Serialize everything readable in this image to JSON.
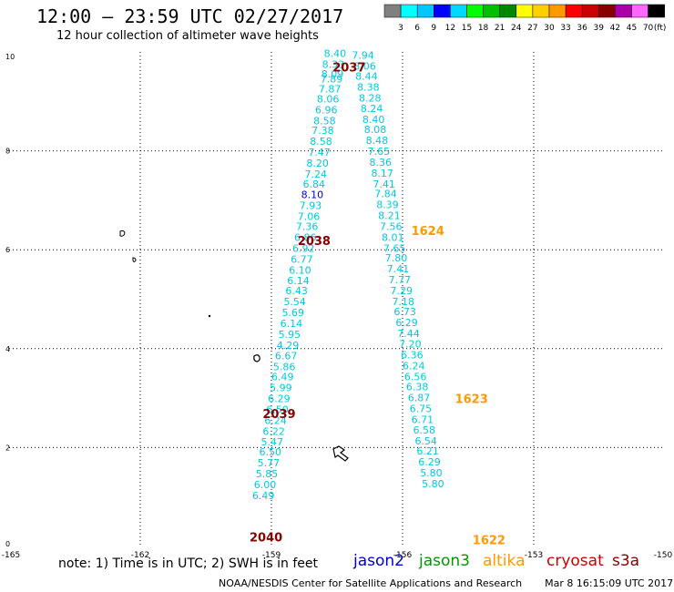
{
  "header": {
    "title": "12:00 – 23:59 UTC 02/27/2017",
    "subtitle": "12 hour collection of altimeter wave heights"
  },
  "colorbar": {
    "colors": [
      "#808080",
      "#00ffff",
      "#00c8ff",
      "#0000ff",
      "#00d8ff",
      "#00ff00",
      "#00c000",
      "#008800",
      "#ffff00",
      "#ffd000",
      "#ff9900",
      "#ff0000",
      "#cc0000",
      "#880000",
      "#aa00aa",
      "#ff66ff",
      "#000000"
    ],
    "labels": [
      "3",
      "6",
      "9",
      "12",
      "15",
      "18",
      "21",
      "24",
      "27",
      "30",
      "33",
      "36",
      "39",
      "42",
      "45",
      "70",
      "(ft)"
    ]
  },
  "map": {
    "lon_ticks": [
      "-165",
      "-162",
      "-159",
      "-156",
      "-153",
      "-150"
    ],
    "lat_ticks": [
      "0",
      "2",
      "4",
      "6",
      "8",
      "10"
    ]
  },
  "chart_data": {
    "type": "scatter",
    "xlim": [
      -165,
      -150
    ],
    "ylim": [
      0,
      10
    ],
    "grid": true,
    "tracks": [
      {
        "satellite": "cryosat",
        "color": "#00c8e0",
        "points": [
          {
            "lon": -157.8,
            "lat": 9.9,
            "v": "8.40"
          },
          {
            "lon": -157.84,
            "lat": 9.68,
            "v": "8.33"
          },
          {
            "lon": -157.86,
            "lat": 9.48,
            "v": "8.09"
          },
          {
            "lon": -157.88,
            "lat": 9.38,
            "v": "7.89"
          },
          {
            "lon": -157.92,
            "lat": 9.18,
            "v": "7.87"
          },
          {
            "lon": -157.96,
            "lat": 8.98,
            "v": "8.06"
          },
          {
            "lon": -158.0,
            "lat": 8.76,
            "v": "6.96"
          },
          {
            "lon": -158.04,
            "lat": 8.54,
            "v": "8.58"
          },
          {
            "lon": -158.08,
            "lat": 8.34,
            "v": "7.38"
          },
          {
            "lon": -158.12,
            "lat": 8.12,
            "v": "8.58"
          },
          {
            "lon": -158.16,
            "lat": 7.9,
            "v": "7.47"
          },
          {
            "lon": -158.2,
            "lat": 7.68,
            "v": "8.20"
          },
          {
            "lon": -158.24,
            "lat": 7.46,
            "v": "7.24"
          },
          {
            "lon": -158.28,
            "lat": 7.26,
            "v": "6.84"
          },
          {
            "lon": -158.32,
            "lat": 7.04,
            "v": "8.10",
            "c": "#0000d0"
          },
          {
            "lon": -158.36,
            "lat": 6.82,
            "v": "7.93"
          },
          {
            "lon": -158.4,
            "lat": 6.6,
            "v": "7.06"
          },
          {
            "lon": -158.44,
            "lat": 6.4,
            "v": "7.36"
          },
          {
            "lon": -158.48,
            "lat": 6.18,
            "v": "6.86"
          },
          {
            "lon": -158.52,
            "lat": 5.96,
            "v": "6.92"
          },
          {
            "lon": -158.56,
            "lat": 5.74,
            "v": "6.77"
          },
          {
            "lon": -158.6,
            "lat": 5.52,
            "v": "6.10"
          },
          {
            "lon": -158.64,
            "lat": 5.3,
            "v": "6.14"
          },
          {
            "lon": -158.68,
            "lat": 5.1,
            "v": "6.43"
          },
          {
            "lon": -158.72,
            "lat": 4.88,
            "v": "5.54"
          },
          {
            "lon": -158.76,
            "lat": 4.66,
            "v": "5.69"
          },
          {
            "lon": -158.8,
            "lat": 4.44,
            "v": "6.14"
          },
          {
            "lon": -158.84,
            "lat": 4.22,
            "v": "5.95"
          },
          {
            "lon": -158.88,
            "lat": 4.0,
            "v": "4.29"
          },
          {
            "lon": -158.92,
            "lat": 3.78,
            "v": "6.67"
          },
          {
            "lon": -158.96,
            "lat": 3.56,
            "v": "5.86"
          },
          {
            "lon": -159.0,
            "lat": 3.36,
            "v": "6.49"
          },
          {
            "lon": -159.04,
            "lat": 3.14,
            "v": "5.99"
          },
          {
            "lon": -159.08,
            "lat": 2.92,
            "v": "6.29"
          },
          {
            "lon": -159.12,
            "lat": 2.7,
            "v": "6.50"
          },
          {
            "lon": -159.16,
            "lat": 2.48,
            "v": "6.24"
          },
          {
            "lon": -159.2,
            "lat": 2.26,
            "v": "6.22"
          },
          {
            "lon": -159.24,
            "lat": 2.04,
            "v": "5.47"
          },
          {
            "lon": -159.28,
            "lat": 1.84,
            "v": "6.50"
          },
          {
            "lon": -159.32,
            "lat": 1.62,
            "v": "5.77"
          },
          {
            "lon": -159.36,
            "lat": 1.4,
            "v": "5.85"
          },
          {
            "lon": -159.4,
            "lat": 1.18,
            "v": "6.00"
          },
          {
            "lon": -159.44,
            "lat": 0.96,
            "v": "6.49"
          }
        ]
      },
      {
        "satellite": "cryosat",
        "color": "#00c8e0",
        "points": [
          {
            "lon": -157.16,
            "lat": 9.86,
            "v": "7.94"
          },
          {
            "lon": -157.12,
            "lat": 9.64,
            "v": "8.06"
          },
          {
            "lon": -157.08,
            "lat": 9.44,
            "v": "8.44"
          },
          {
            "lon": -157.04,
            "lat": 9.22,
            "v": "8.38"
          },
          {
            "lon": -157.0,
            "lat": 9.0,
            "v": "8.28"
          },
          {
            "lon": -156.96,
            "lat": 8.78,
            "v": "8.24"
          },
          {
            "lon": -156.92,
            "lat": 8.56,
            "v": "8.40"
          },
          {
            "lon": -156.88,
            "lat": 8.36,
            "v": "8.08"
          },
          {
            "lon": -156.84,
            "lat": 8.14,
            "v": "8.48"
          },
          {
            "lon": -156.8,
            "lat": 7.92,
            "v": "7.65"
          },
          {
            "lon": -156.76,
            "lat": 7.7,
            "v": "8.36"
          },
          {
            "lon": -156.72,
            "lat": 7.48,
            "v": "8.17"
          },
          {
            "lon": -156.68,
            "lat": 7.26,
            "v": "7.41"
          },
          {
            "lon": -156.64,
            "lat": 7.06,
            "v": "7.84"
          },
          {
            "lon": -156.6,
            "lat": 6.84,
            "v": "8.39"
          },
          {
            "lon": -156.56,
            "lat": 6.62,
            "v": "8.21"
          },
          {
            "lon": -156.52,
            "lat": 6.4,
            "v": "7.56"
          },
          {
            "lon": -156.48,
            "lat": 6.18,
            "v": "8.01"
          },
          {
            "lon": -156.44,
            "lat": 5.96,
            "v": "7.65"
          },
          {
            "lon": -156.4,
            "lat": 5.76,
            "v": "7.80"
          },
          {
            "lon": -156.36,
            "lat": 5.54,
            "v": "7.41"
          },
          {
            "lon": -156.32,
            "lat": 5.32,
            "v": "7.77"
          },
          {
            "lon": -156.28,
            "lat": 5.1,
            "v": "7.29"
          },
          {
            "lon": -156.24,
            "lat": 4.88,
            "v": "7.18"
          },
          {
            "lon": -156.2,
            "lat": 4.68,
            "v": "6.73"
          },
          {
            "lon": -156.16,
            "lat": 4.46,
            "v": "6.29"
          },
          {
            "lon": -156.12,
            "lat": 4.24,
            "v": "7.44"
          },
          {
            "lon": -156.08,
            "lat": 4.02,
            "v": "7.20"
          },
          {
            "lon": -156.04,
            "lat": 3.8,
            "v": "6.36"
          },
          {
            "lon": -156.0,
            "lat": 3.58,
            "v": "6.24"
          },
          {
            "lon": -155.96,
            "lat": 3.36,
            "v": "6.56"
          },
          {
            "lon": -155.92,
            "lat": 3.16,
            "v": "6.38"
          },
          {
            "lon": -155.88,
            "lat": 2.94,
            "v": "6.87"
          },
          {
            "lon": -155.84,
            "lat": 2.72,
            "v": "6.75"
          },
          {
            "lon": -155.8,
            "lat": 2.5,
            "v": "6.71"
          },
          {
            "lon": -155.76,
            "lat": 2.28,
            "v": "6.58"
          },
          {
            "lon": -155.72,
            "lat": 2.06,
            "v": "6.54"
          },
          {
            "lon": -155.68,
            "lat": 1.86,
            "v": "6.21"
          },
          {
            "lon": -155.64,
            "lat": 1.64,
            "v": "6.29"
          },
          {
            "lon": -155.6,
            "lat": 1.42,
            "v": "5.80"
          },
          {
            "lon": -155.56,
            "lat": 1.2,
            "v": "5.80"
          }
        ]
      }
    ],
    "time_labels": [
      {
        "lon": -157.6,
        "lat": 9.6,
        "v": "2037",
        "color": "#880000"
      },
      {
        "lon": -158.4,
        "lat": 6.1,
        "v": "2038",
        "color": "#880000"
      },
      {
        "lon": -159.2,
        "lat": 2.6,
        "v": "2039",
        "color": "#880000"
      },
      {
        "lon": -159.5,
        "lat": 0.1,
        "v": "2040",
        "color": "#880000"
      },
      {
        "lon": -155.8,
        "lat": 6.3,
        "v": "1624",
        "color": "#ff9900"
      },
      {
        "lon": -154.8,
        "lat": 2.9,
        "v": "1623",
        "color": "#ff9900"
      },
      {
        "lon": -154.4,
        "lat": 0.05,
        "v": "1622",
        "color": "#ff9900"
      }
    ]
  },
  "note": "note:  1) Time is in UTC; 2) SWH is in feet",
  "legend": [
    {
      "name": "jason2",
      "color": "#0000cc"
    },
    {
      "name": "jason3",
      "color": "#009900"
    },
    {
      "name": "altika",
      "color": "#ff9900"
    },
    {
      "name": "cryosat",
      "color": "#cc0000"
    },
    {
      "name": "s3a",
      "color": "#880000"
    }
  ],
  "footer": {
    "credit": "NOAA/NESDIS Center for Satellite Applications and Research",
    "timestamp": "Mar  8 16:15:09 UTC 2017"
  }
}
